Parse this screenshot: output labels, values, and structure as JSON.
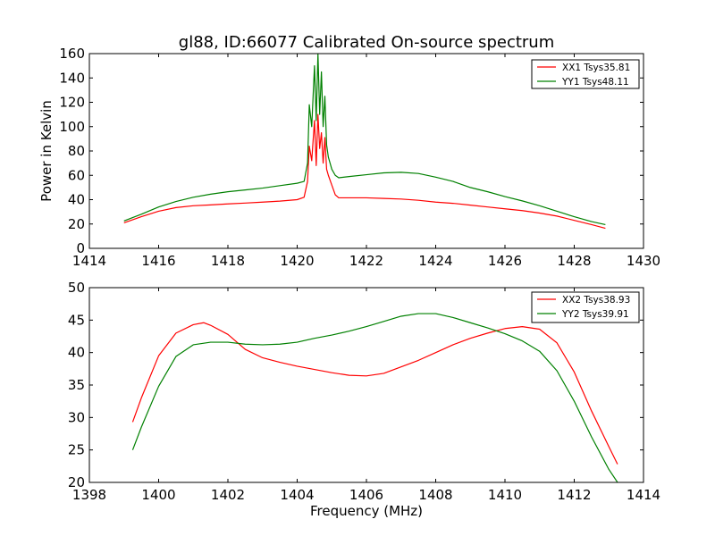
{
  "chart_data": [
    {
      "type": "line",
      "title": "gl88, ID:66077 Calibrated On-source spectrum",
      "xlabel": "",
      "ylabel": "Power in Kelvin",
      "xlim": [
        1414,
        1430
      ],
      "ylim": [
        0,
        160
      ],
      "xticks": [
        1414,
        1416,
        1418,
        1420,
        1422,
        1424,
        1426,
        1428,
        1430
      ],
      "yticks": [
        0,
        20,
        40,
        60,
        80,
        100,
        120,
        140,
        160
      ],
      "grid": false,
      "legend": "top-right",
      "series": [
        {
          "name": "XX1 Tsys35.81",
          "color": "#ff0000",
          "x": [
            1415.0,
            1415.5,
            1416.0,
            1416.5,
            1417.0,
            1417.5,
            1418.0,
            1418.5,
            1419.0,
            1419.5,
            1420.0,
            1420.2,
            1420.3,
            1420.35,
            1420.42,
            1420.5,
            1420.55,
            1420.6,
            1420.65,
            1420.7,
            1420.75,
            1420.8,
            1420.85,
            1420.9,
            1421.0,
            1421.1,
            1421.2,
            1421.5,
            1422.0,
            1422.5,
            1423.0,
            1423.5,
            1424.0,
            1424.5,
            1425.0,
            1425.5,
            1426.0,
            1426.5,
            1427.0,
            1427.5,
            1428.0,
            1428.5,
            1428.9
          ],
          "y": [
            21,
            26,
            30.5,
            33.5,
            35,
            35.7,
            36.5,
            37.2,
            38,
            38.8,
            40,
            42,
            55,
            84,
            72,
            105,
            68,
            110,
            82,
            95,
            70,
            91,
            65,
            60,
            52,
            44,
            41.5,
            41.5,
            41.5,
            41,
            40.5,
            39.5,
            38,
            37,
            35.5,
            34,
            32.5,
            31,
            29,
            26.5,
            23,
            19.5,
            16.5
          ]
        },
        {
          "name": "YY1 Tsys48.11",
          "color": "#008000",
          "x": [
            1415.0,
            1415.5,
            1416.0,
            1416.5,
            1417.0,
            1417.5,
            1418.0,
            1418.5,
            1419.0,
            1419.5,
            1420.0,
            1420.2,
            1420.3,
            1420.35,
            1420.42,
            1420.5,
            1420.55,
            1420.6,
            1420.65,
            1420.7,
            1420.75,
            1420.8,
            1420.85,
            1420.9,
            1421.0,
            1421.1,
            1421.2,
            1421.5,
            1422.0,
            1422.5,
            1423.0,
            1423.5,
            1424.0,
            1424.5,
            1425.0,
            1425.5,
            1426.0,
            1426.5,
            1427.0,
            1427.5,
            1428.0,
            1428.5,
            1428.9
          ],
          "y": [
            22.5,
            28,
            34,
            38.5,
            42,
            44.5,
            46.5,
            48,
            49.5,
            51.5,
            53.5,
            55,
            70,
            118,
            100,
            150,
            105,
            160,
            110,
            145,
            100,
            125,
            85,
            75,
            65,
            60,
            58,
            59,
            60.5,
            62,
            62.5,
            61.5,
            58.5,
            55,
            50,
            46.5,
            42.5,
            39,
            35,
            30.5,
            26,
            22,
            19.5
          ]
        }
      ]
    },
    {
      "type": "line",
      "title": "",
      "xlabel": "Frequency (MHz)",
      "ylabel": "",
      "xlim": [
        1398,
        1414
      ],
      "ylim": [
        20,
        50
      ],
      "xticks": [
        1398,
        1400,
        1402,
        1404,
        1406,
        1408,
        1410,
        1412,
        1414
      ],
      "yticks": [
        20,
        25,
        30,
        35,
        40,
        45,
        50
      ],
      "grid": false,
      "legend": "top-right",
      "series": [
        {
          "name": "XX2 Tsys38.93",
          "color": "#ff0000",
          "x": [
            1399.25,
            1399.5,
            1400.0,
            1400.5,
            1401.0,
            1401.3,
            1401.5,
            1402.0,
            1402.5,
            1403.0,
            1403.5,
            1404.0,
            1404.5,
            1405.0,
            1405.5,
            1406.0,
            1406.5,
            1407.0,
            1407.5,
            1408.0,
            1408.5,
            1409.0,
            1409.5,
            1410.0,
            1410.5,
            1411.0,
            1411.5,
            1412.0,
            1412.5,
            1413.0,
            1413.25
          ],
          "y": [
            29.3,
            33,
            39.5,
            43,
            44.3,
            44.6,
            44.2,
            42.8,
            40.5,
            39.2,
            38.5,
            37.9,
            37.4,
            36.9,
            36.5,
            36.4,
            36.8,
            37.8,
            38.8,
            40,
            41.2,
            42.2,
            43,
            43.7,
            44,
            43.6,
            41.5,
            37,
            31,
            25.5,
            22.8
          ]
        },
        {
          "name": "YY2 Tsys39.91",
          "color": "#008000",
          "x": [
            1399.25,
            1399.5,
            1400.0,
            1400.5,
            1401.0,
            1401.5,
            1402.0,
            1402.5,
            1403.0,
            1403.5,
            1404.0,
            1404.5,
            1405.0,
            1405.5,
            1406.0,
            1406.5,
            1407.0,
            1407.5,
            1408.0,
            1408.5,
            1409.0,
            1409.5,
            1410.0,
            1410.5,
            1411.0,
            1411.5,
            1412.0,
            1412.5,
            1413.0,
            1413.25
          ],
          "y": [
            25,
            28.5,
            34.8,
            39.4,
            41.2,
            41.6,
            41.6,
            41.3,
            41.2,
            41.3,
            41.6,
            42.2,
            42.7,
            43.3,
            44,
            44.8,
            45.6,
            46.0,
            46.0,
            45.4,
            44.6,
            43.8,
            42.9,
            41.8,
            40.2,
            37.2,
            32.5,
            27,
            22,
            20
          ]
        }
      ]
    }
  ]
}
